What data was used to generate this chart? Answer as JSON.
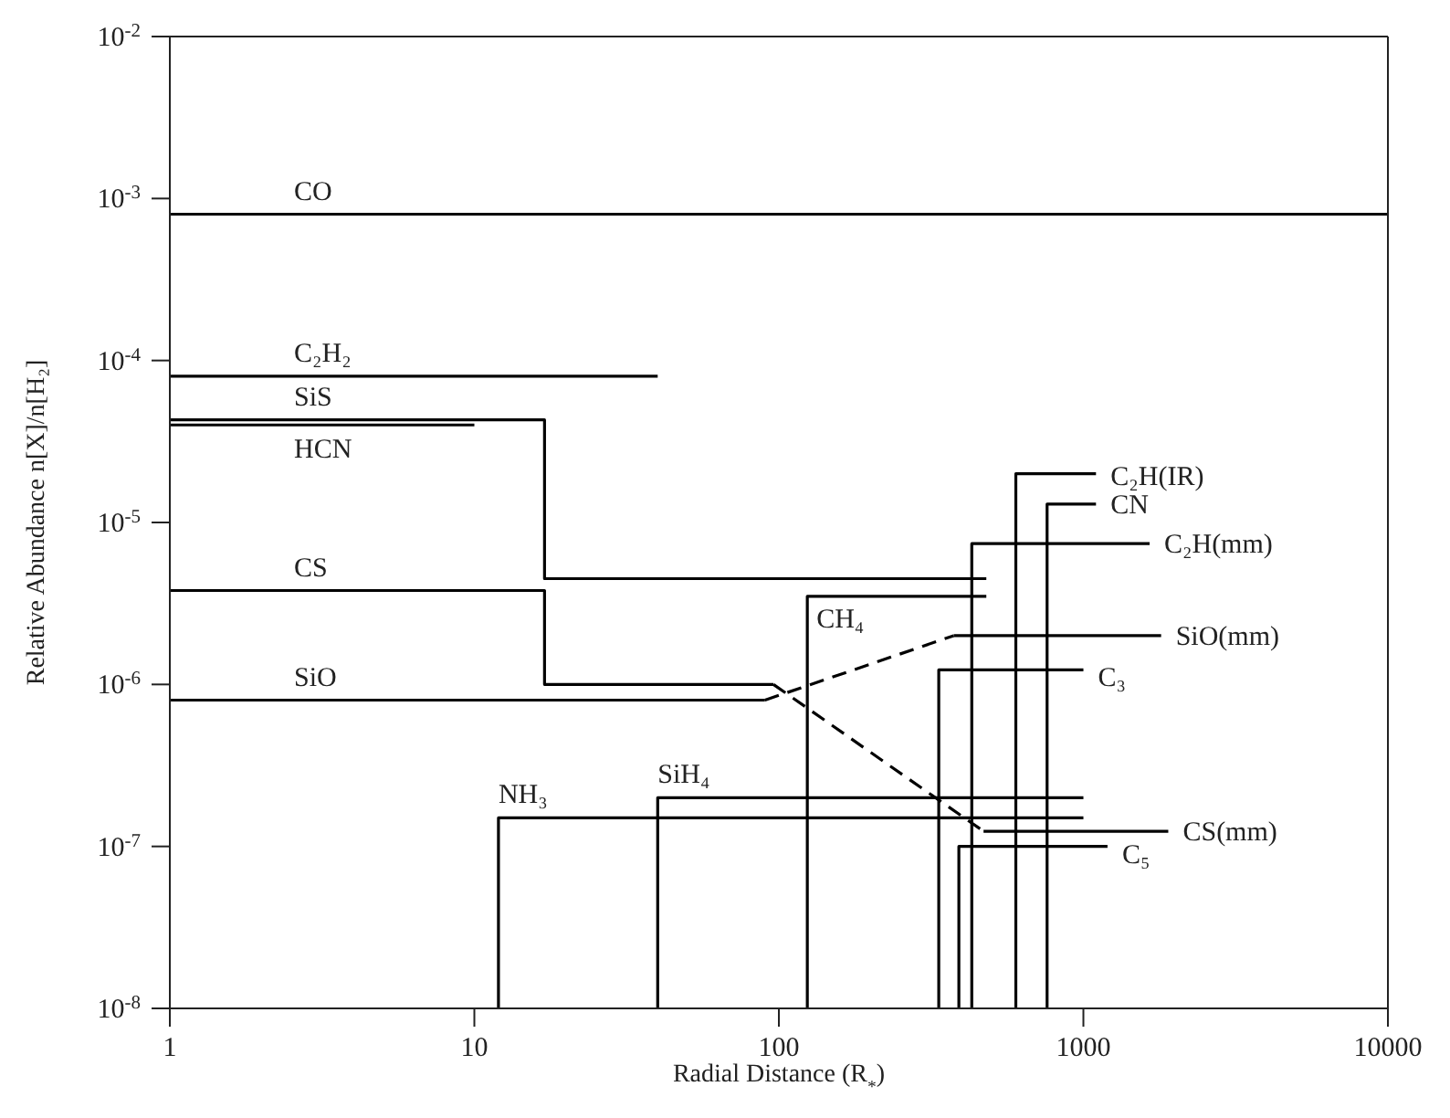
{
  "chart_data": {
    "type": "line",
    "xlabel": "Radial Distance (R$_{*}$)",
    "ylabel": "Relative Abundance n[X]/n[H₂]",
    "log": "xy",
    "legend": false,
    "marker": "none",
    "xlim": [
      1,
      10000
    ],
    "xticks": [
      1,
      10,
      100,
      1000,
      10000
    ],
    "ylim": [
      1e-08,
      0.01
    ],
    "yticks": [
      {
        "value": 1e-08,
        "label": "10$^{-8}$"
      },
      {
        "value": 1e-07,
        "label": "10$^{-7}$"
      },
      {
        "value": 1e-06,
        "label": "10$^{-6}$"
      },
      {
        "value": 1e-05,
        "label": "10$^{-5}$"
      },
      {
        "value": 0.0001,
        "label": "10$^{-4}$"
      },
      {
        "value": 0.001,
        "label": "10$^{-3}$"
      },
      {
        "value": 0.01,
        "label": "10$^{-2}$"
      }
    ],
    "series": [
      {
        "name": "CO",
        "color": "#000000",
        "x": [
          1,
          10000
        ],
        "values": [
          0.0008,
          0.0008
        ]
      },
      {
        "name": "C₂H₂",
        "color": "#000000",
        "x": [
          1,
          40
        ],
        "values": [
          8e-05,
          8e-05
        ]
      },
      {
        "name": "SiS",
        "color": "#000000",
        "x": [
          1,
          17,
          17,
          480
        ],
        "values": [
          4.3e-05,
          4.3e-05,
          4.5e-06,
          4.5e-06
        ]
      },
      {
        "name": "HCN",
        "color": "#000000",
        "x": [
          1,
          10
        ],
        "values": [
          4e-05,
          4e-05
        ]
      },
      {
        "name": "CS",
        "color": "#000000",
        "x": [
          1,
          17,
          17,
          96
        ],
        "values": [
          3.8e-06,
          3.8e-06,
          1e-06,
          1e-06
        ]
      },
      {
        "color": "#000000",
        "line_style": "dashed",
        "x": [
          96,
          470
        ],
        "values": [
          1e-06,
          1.24e-07
        ]
      },
      {
        "name": "CS(mm)",
        "color": "#000000",
        "x": [
          470,
          1900
        ],
        "values": [
          1.24e-07,
          1.24e-07
        ]
      },
      {
        "name": "SiO",
        "color": "#000000",
        "x": [
          1,
          90
        ],
        "values": [
          8e-07,
          8e-07
        ]
      },
      {
        "color": "#000000",
        "line_style": "dashed",
        "x": [
          90,
          375
        ],
        "values": [
          8e-07,
          2e-06
        ]
      },
      {
        "name": "SiO(mm)",
        "color": "#000000",
        "x": [
          375,
          1800
        ],
        "values": [
          2e-06,
          2e-06
        ]
      },
      {
        "name": "NH₃",
        "color": "#000000",
        "x": [
          12,
          12,
          1000
        ],
        "values": [
          1e-08,
          1.5e-07,
          1.5e-07
        ]
      },
      {
        "name": "SiH₄",
        "color": "#000000",
        "x": [
          40,
          40,
          1000
        ],
        "values": [
          1e-08,
          2e-07,
          2e-07
        ]
      },
      {
        "name": "CH₄",
        "color": "#000000",
        "x": [
          124,
          124,
          480
        ],
        "values": [
          1e-08,
          3.5e-06,
          3.5e-06
        ]
      },
      {
        "name": "C₃",
        "color": "#000000",
        "x": [
          335,
          335,
          1000
        ],
        "values": [
          1e-08,
          1.23e-06,
          1.23e-06
        ]
      },
      {
        "name": "C₅",
        "color": "#000000",
        "x": [
          390,
          390,
          1200
        ],
        "values": [
          1e-08,
          1e-07,
          1e-07
        ]
      },
      {
        "name": "C₂H(mm)",
        "color": "#000000",
        "x": [
          430,
          430,
          1650
        ],
        "values": [
          1e-08,
          7.4e-06,
          7.4e-06
        ]
      },
      {
        "name": "C₂H(IR)",
        "color": "#000000",
        "x": [
          600,
          600,
          1100
        ],
        "values": [
          1e-08,
          2e-05,
          2e-05
        ]
      },
      {
        "name": "CN",
        "color": "#000000",
        "x": [
          760,
          760,
          1100
        ],
        "values": [
          1e-08,
          1.3e-05,
          1.3e-05
        ]
      }
    ]
  }
}
